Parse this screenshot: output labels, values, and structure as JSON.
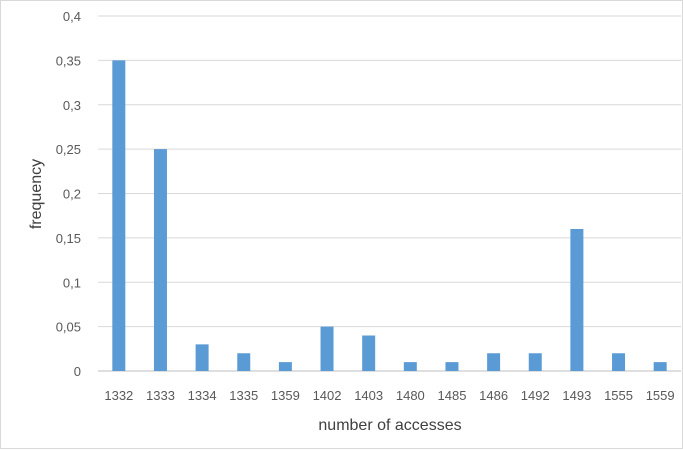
{
  "chart_data": {
    "type": "bar",
    "categories": [
      "1332",
      "1333",
      "1334",
      "1335",
      "1359",
      "1402",
      "1403",
      "1480",
      "1485",
      "1486",
      "1492",
      "1493",
      "1555",
      "1559"
    ],
    "series": [
      {
        "values": [
          0.35,
          0.25,
          0.03,
          0.02,
          0.01,
          0.05,
          0.04,
          0.01,
          0.01,
          0.02,
          0.02,
          0.16,
          0.02,
          0.01
        ]
      }
    ],
    "xlabel": "number of accesses",
    "ylabel": "frequency",
    "ylim": [
      0,
      0.4
    ],
    "yticks": [
      {
        "value": 0,
        "label": "0"
      },
      {
        "value": 0.05,
        "label": "0,05"
      },
      {
        "value": 0.1,
        "label": "0,1"
      },
      {
        "value": 0.15,
        "label": "0,15"
      },
      {
        "value": 0.2,
        "label": "0,2"
      },
      {
        "value": 0.25,
        "label": "0,25"
      },
      {
        "value": 0.3,
        "label": "0,3"
      },
      {
        "value": 0.35,
        "label": "0,35"
      },
      {
        "value": 0.4,
        "label": "0,4"
      }
    ],
    "grid": true,
    "legend": "none",
    "colors": {
      "bar": "#5b9bd5",
      "grid": "#d9d9d9",
      "axis": "#bfbfbf"
    }
  }
}
